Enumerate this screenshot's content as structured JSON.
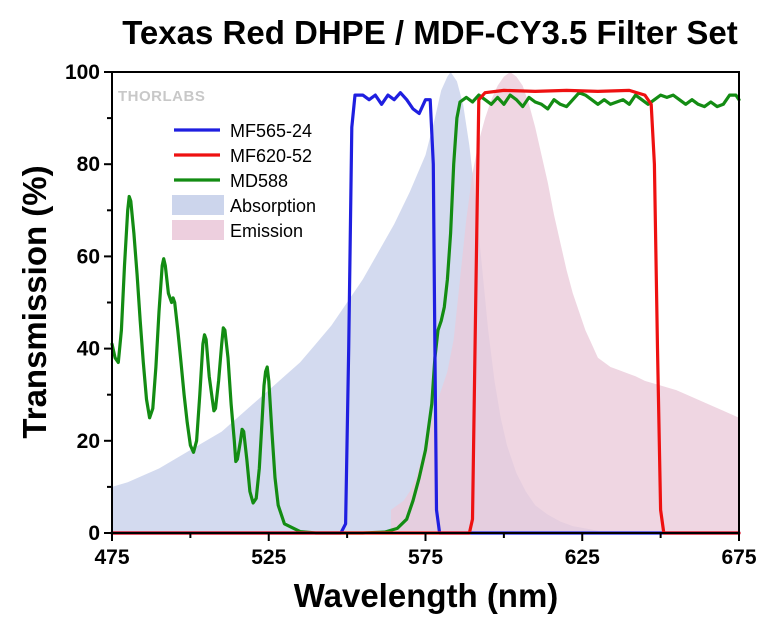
{
  "chart_data": {
    "type": "line",
    "title": "Texas Red DHPE / MDF-CY3.5 Filter Set",
    "xlabel": "Wavelength (nm)",
    "ylabel": "Transmission (%)",
    "xlim": [
      475,
      675
    ],
    "ylim": [
      0,
      100
    ],
    "xticks": [
      475,
      525,
      575,
      625,
      675
    ],
    "yticks": [
      0,
      20,
      40,
      60,
      80,
      100
    ],
    "grid": false,
    "legend_position": "upper-left",
    "watermark": "THORLABS",
    "series": [
      {
        "name": "MF565-24",
        "kind": "line",
        "color": "#1f1fe0",
        "points": [
          [
            475,
            0
          ],
          [
            548,
            0
          ],
          [
            549.5,
            2
          ],
          [
            550.5,
            40
          ],
          [
            551.5,
            88
          ],
          [
            552.5,
            95
          ],
          [
            555,
            95
          ],
          [
            557,
            94
          ],
          [
            559,
            95
          ],
          [
            561,
            93
          ],
          [
            563,
            95
          ],
          [
            565,
            94
          ],
          [
            567,
            95.5
          ],
          [
            569,
            94
          ],
          [
            571,
            92
          ],
          [
            573,
            91
          ],
          [
            575,
            94
          ],
          [
            576.5,
            94
          ],
          [
            577.5,
            80
          ],
          [
            578,
            40
          ],
          [
            578.5,
            5
          ],
          [
            579.5,
            0
          ],
          [
            675,
            0
          ]
        ]
      },
      {
        "name": "MF620-52",
        "kind": "line",
        "color": "#ee1111",
        "points": [
          [
            475,
            0
          ],
          [
            589,
            0
          ],
          [
            590,
            3
          ],
          [
            591,
            50
          ],
          [
            592,
            94
          ],
          [
            594,
            95.5
          ],
          [
            600,
            96
          ],
          [
            610,
            95.8
          ],
          [
            620,
            96
          ],
          [
            630,
            95.8
          ],
          [
            640,
            96
          ],
          [
            645,
            95
          ],
          [
            647,
            93
          ],
          [
            648,
            80
          ],
          [
            649,
            40
          ],
          [
            650,
            5
          ],
          [
            651,
            0
          ],
          [
            675,
            0
          ]
        ]
      },
      {
        "name": "MD588",
        "kind": "line",
        "color": "#138c13",
        "points": [
          [
            475,
            41
          ],
          [
            476,
            38
          ],
          [
            477,
            37
          ],
          [
            478,
            44
          ],
          [
            479,
            58
          ],
          [
            480,
            70
          ],
          [
            480.5,
            73
          ],
          [
            481,
            72
          ],
          [
            482,
            65
          ],
          [
            483,
            56
          ],
          [
            484,
            46
          ],
          [
            485,
            37
          ],
          [
            486,
            29
          ],
          [
            487,
            25
          ],
          [
            488,
            27
          ],
          [
            489,
            36
          ],
          [
            490,
            48
          ],
          [
            491,
            58
          ],
          [
            491.5,
            59.5
          ],
          [
            492,
            58
          ],
          [
            493,
            52
          ],
          [
            494,
            50
          ],
          [
            494.5,
            51
          ],
          [
            495,
            50
          ],
          [
            496,
            44
          ],
          [
            497,
            37
          ],
          [
            498,
            30
          ],
          [
            499,
            24
          ],
          [
            500,
            19
          ],
          [
            501,
            17.5
          ],
          [
            502,
            20
          ],
          [
            503,
            30
          ],
          [
            504,
            41
          ],
          [
            504.5,
            43
          ],
          [
            505,
            42
          ],
          [
            506,
            34
          ],
          [
            507,
            29
          ],
          [
            507.5,
            26.5
          ],
          [
            508,
            27
          ],
          [
            509,
            33
          ],
          [
            510,
            41
          ],
          [
            510.5,
            44.5
          ],
          [
            511,
            44
          ],
          [
            512,
            38
          ],
          [
            513,
            28
          ],
          [
            514,
            20
          ],
          [
            514.5,
            15.5
          ],
          [
            515,
            16
          ],
          [
            516,
            20
          ],
          [
            516.5,
            22.5
          ],
          [
            517,
            22
          ],
          [
            518,
            16
          ],
          [
            519,
            9
          ],
          [
            520,
            6.5
          ],
          [
            521,
            7.5
          ],
          [
            522,
            14
          ],
          [
            523,
            26
          ],
          [
            523.5,
            32
          ],
          [
            524,
            35
          ],
          [
            524.5,
            36
          ],
          [
            525,
            33
          ],
          [
            526,
            22
          ],
          [
            527,
            12
          ],
          [
            528,
            6
          ],
          [
            530,
            2
          ],
          [
            535,
            0.3
          ],
          [
            540,
            0
          ],
          [
            555,
            0
          ],
          [
            562,
            0.2
          ],
          [
            566,
            1
          ],
          [
            569,
            3
          ],
          [
            571,
            7
          ],
          [
            573,
            12
          ],
          [
            575,
            18
          ],
          [
            577,
            28
          ],
          [
            578,
            38
          ],
          [
            579,
            44
          ],
          [
            580,
            46
          ],
          [
            581,
            49
          ],
          [
            582,
            55
          ],
          [
            583,
            65
          ],
          [
            584,
            80
          ],
          [
            585,
            90
          ],
          [
            586,
            93.5
          ],
          [
            588,
            94.5
          ],
          [
            590,
            93.5
          ],
          [
            592,
            95
          ],
          [
            594,
            94
          ],
          [
            596,
            93
          ],
          [
            598,
            94.5
          ],
          [
            600,
            93
          ],
          [
            602,
            95
          ],
          [
            604,
            94
          ],
          [
            606,
            92.5
          ],
          [
            608,
            94.5
          ],
          [
            610,
            93.5
          ],
          [
            612,
            93
          ],
          [
            614,
            92
          ],
          [
            616,
            94
          ],
          [
            618,
            93
          ],
          [
            620,
            92.5
          ],
          [
            622,
            94
          ],
          [
            624,
            95.5
          ],
          [
            626,
            95
          ],
          [
            628,
            94
          ],
          [
            630,
            93
          ],
          [
            632,
            94
          ],
          [
            634,
            93
          ],
          [
            636,
            93.5
          ],
          [
            638,
            94
          ],
          [
            640,
            93
          ],
          [
            642,
            95
          ],
          [
            644,
            94
          ],
          [
            646,
            93
          ],
          [
            648,
            94
          ],
          [
            650,
            95
          ],
          [
            652,
            94.5
          ],
          [
            654,
            95
          ],
          [
            656,
            94
          ],
          [
            658,
            93
          ],
          [
            660,
            94
          ],
          [
            662,
            93
          ],
          [
            664,
            92.5
          ],
          [
            666,
            93.5
          ],
          [
            668,
            92.5
          ],
          [
            670,
            93
          ],
          [
            672,
            95
          ],
          [
            674,
            95
          ],
          [
            675,
            94
          ]
        ]
      },
      {
        "name": "Absorption",
        "kind": "area",
        "color": "#c6d0ea",
        "points": [
          [
            475,
            10
          ],
          [
            480,
            11
          ],
          [
            485,
            12.5
          ],
          [
            490,
            14
          ],
          [
            495,
            16
          ],
          [
            500,
            18
          ],
          [
            505,
            20
          ],
          [
            510,
            22
          ],
          [
            515,
            25
          ],
          [
            520,
            28
          ],
          [
            525,
            31
          ],
          [
            530,
            34
          ],
          [
            535,
            37
          ],
          [
            540,
            41
          ],
          [
            545,
            45
          ],
          [
            550,
            50
          ],
          [
            555,
            55
          ],
          [
            560,
            61
          ],
          [
            565,
            67
          ],
          [
            570,
            74
          ],
          [
            575,
            82
          ],
          [
            578,
            90
          ],
          [
            580,
            96
          ],
          [
            582,
            99
          ],
          [
            583,
            100
          ],
          [
            585,
            98
          ],
          [
            587,
            93
          ],
          [
            589,
            84
          ],
          [
            591,
            72
          ],
          [
            593,
            58
          ],
          [
            595,
            44
          ],
          [
            597,
            33
          ],
          [
            599,
            25
          ],
          [
            601,
            19
          ],
          [
            604,
            13
          ],
          [
            607,
            9
          ],
          [
            610,
            6
          ],
          [
            614,
            4
          ],
          [
            618,
            2.5
          ],
          [
            622,
            1.5
          ],
          [
            626,
            1
          ],
          [
            630,
            0.5
          ],
          [
            631,
            0
          ]
        ]
      },
      {
        "name": "Emission",
        "kind": "area",
        "color": "#ebcada",
        "points": [
          [
            564,
            0
          ],
          [
            564,
            5
          ],
          [
            566,
            6
          ],
          [
            568,
            7
          ],
          [
            570,
            9
          ],
          [
            572,
            12
          ],
          [
            574,
            17
          ],
          [
            576,
            22
          ],
          [
            578,
            27
          ],
          [
            580,
            31
          ],
          [
            582,
            35
          ],
          [
            584,
            42
          ],
          [
            586,
            55
          ],
          [
            588,
            68
          ],
          [
            590,
            78
          ],
          [
            592,
            85
          ],
          [
            594,
            90
          ],
          [
            596,
            94
          ],
          [
            598,
            97
          ],
          [
            600,
            99
          ],
          [
            602,
            100
          ],
          [
            604,
            99
          ],
          [
            606,
            97
          ],
          [
            608,
            93
          ],
          [
            610,
            88
          ],
          [
            612,
            82
          ],
          [
            614,
            76
          ],
          [
            616,
            69
          ],
          [
            618,
            63
          ],
          [
            620,
            57
          ],
          [
            622,
            52
          ],
          [
            624,
            48
          ],
          [
            626,
            44
          ],
          [
            628,
            41
          ],
          [
            630,
            38
          ],
          [
            632,
            37
          ],
          [
            634,
            36
          ],
          [
            636,
            35.5
          ],
          [
            638,
            35
          ],
          [
            640,
            34.5
          ],
          [
            642,
            34
          ],
          [
            645,
            33
          ],
          [
            650,
            32
          ],
          [
            655,
            31
          ],
          [
            660,
            29.5
          ],
          [
            665,
            28
          ],
          [
            670,
            26.5
          ],
          [
            675,
            25
          ],
          [
            675,
            0
          ]
        ]
      }
    ]
  }
}
